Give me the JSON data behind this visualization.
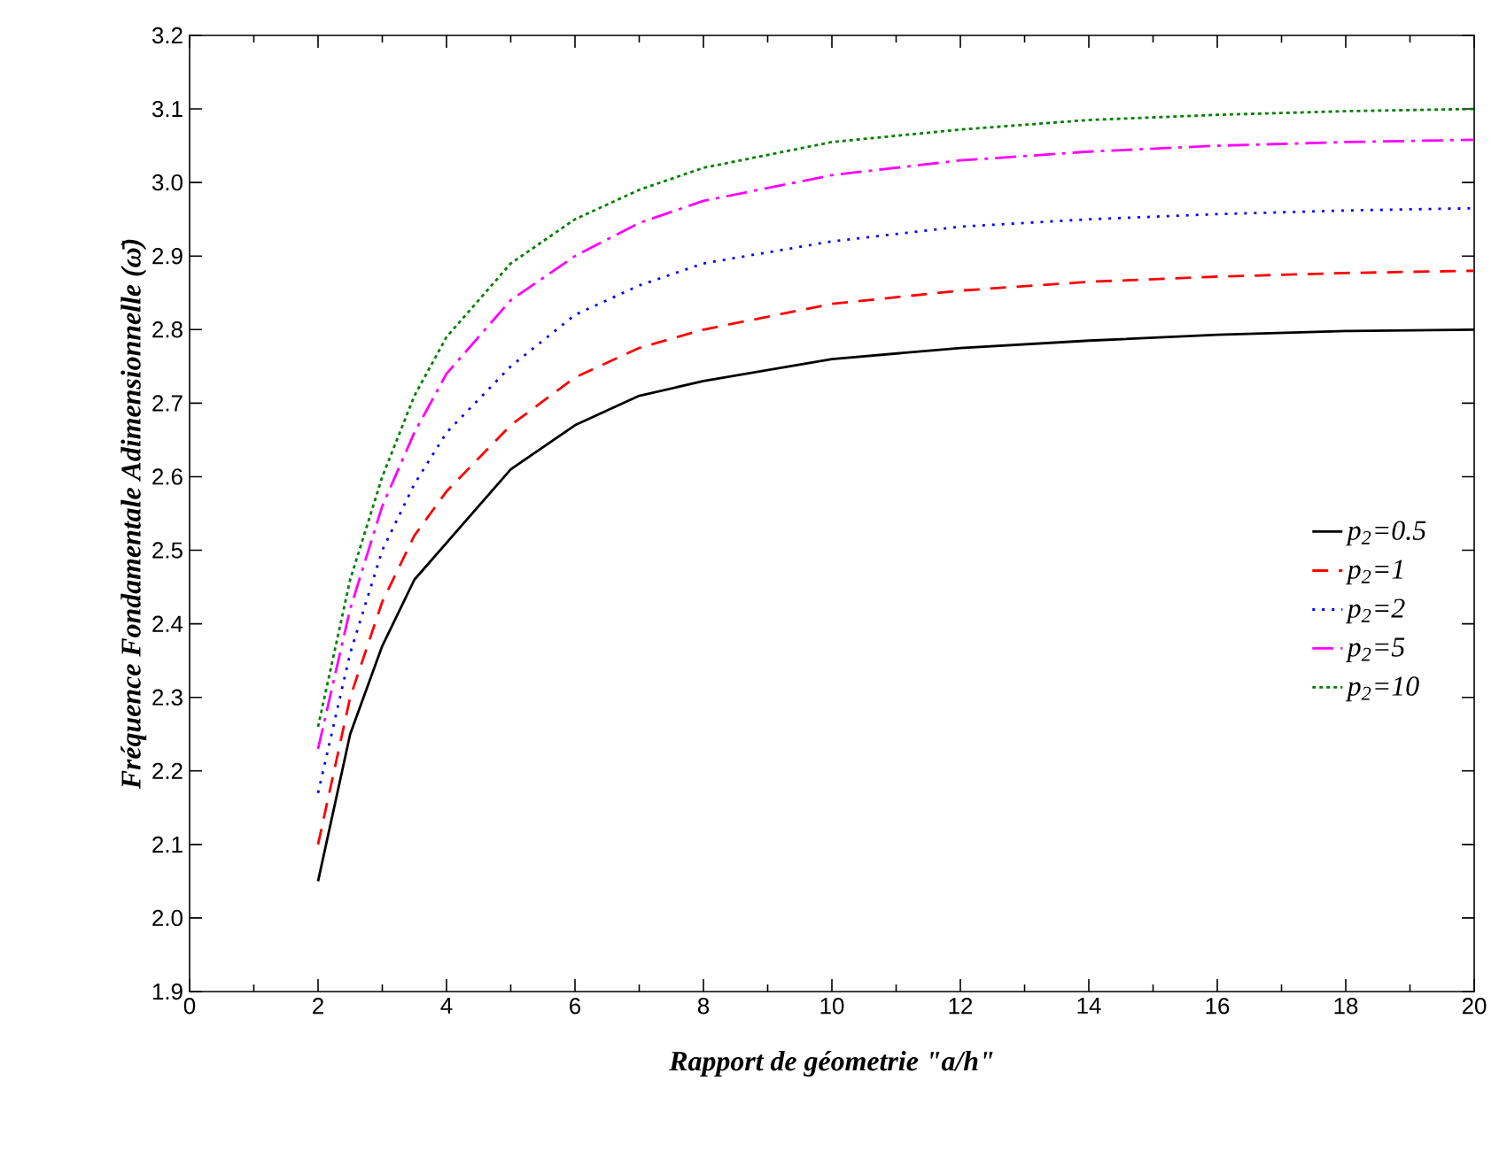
{
  "chart_data": {
    "type": "line",
    "xlabel": "Rapport de géometrie \"a/h\"",
    "ylabel": "Fréquence Fondamentale Adimensionnelle (ω̄)",
    "x": [
      2,
      2.5,
      3,
      3.5,
      4,
      5,
      6,
      7,
      8,
      10,
      12,
      14,
      16,
      18,
      20
    ],
    "series": [
      {
        "name": "p$_{2}$=0.5",
        "color": "#000000",
        "line_style": "solid",
        "values": [
          2.05,
          2.25,
          2.37,
          2.46,
          2.51,
          2.61,
          2.67,
          2.71,
          2.73,
          2.76,
          2.775,
          2.785,
          2.793,
          2.798,
          2.8
        ]
      },
      {
        "name": "p$_{2}$=1",
        "color": "#ff0000",
        "line_style": "dashed",
        "values": [
          2.1,
          2.3,
          2.43,
          2.52,
          2.58,
          2.67,
          2.735,
          2.775,
          2.8,
          2.835,
          2.853,
          2.865,
          2.872,
          2.877,
          2.88
        ]
      },
      {
        "name": "p$_{2}$=2",
        "color": "#0000ff",
        "line_style": "dotted",
        "values": [
          2.17,
          2.36,
          2.5,
          2.59,
          2.66,
          2.75,
          2.82,
          2.86,
          2.89,
          2.92,
          2.94,
          2.95,
          2.957,
          2.962,
          2.965
        ]
      },
      {
        "name": "p$_{2}$=5",
        "color": "#ff00ff",
        "line_style": "dashdot",
        "values": [
          2.23,
          2.42,
          2.56,
          2.66,
          2.74,
          2.84,
          2.9,
          2.945,
          2.975,
          3.01,
          3.03,
          3.042,
          3.05,
          3.055,
          3.058
        ]
      },
      {
        "name": "p$_{2}$=10",
        "color": "#008000",
        "line_style": "densely dotted",
        "values": [
          2.26,
          2.46,
          2.6,
          2.71,
          2.79,
          2.89,
          2.95,
          2.99,
          3.02,
          3.055,
          3.072,
          3.085,
          3.092,
          3.097,
          3.1
        ]
      }
    ],
    "xlim": [
      0,
      20
    ],
    "xticks": [
      0,
      2,
      4,
      6,
      8,
      10,
      12,
      14,
      16,
      18,
      20
    ],
    "ylim": [
      1.9,
      3.2
    ],
    "yticks": [
      1.9,
      {
        "value": 2,
        "label": "2.0"
      },
      2.1,
      2.2,
      2.3,
      2.4,
      2.5,
      2.6,
      2.7,
      2.8,
      2.9,
      {
        "value": 3,
        "label": "3.0"
      },
      3.1,
      3.2
    ],
    "grid": false,
    "legend": "right",
    "marker": "none"
  }
}
